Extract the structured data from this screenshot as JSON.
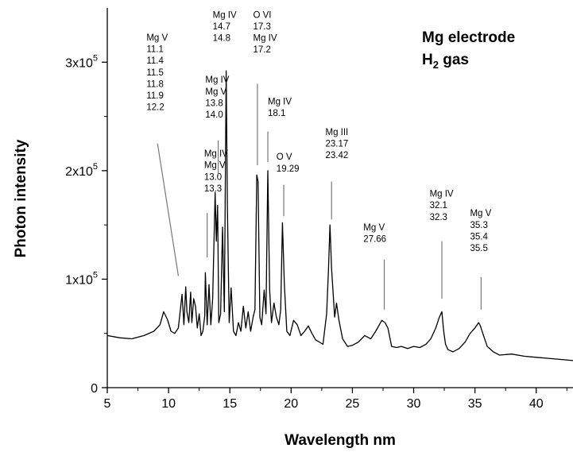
{
  "chart_data": {
    "type": "line",
    "xlabel": "Wavelength nm",
    "ylabel": "Photon intensity",
    "xlim": [
      5,
      43
    ],
    "ylim": [
      0,
      350000
    ],
    "x_ticks": [
      5,
      10,
      15,
      20,
      25,
      30,
      35,
      40
    ],
    "x_tick_labels": [
      "5",
      "10",
      "15",
      "20",
      "25",
      "30",
      "35",
      "40"
    ],
    "y_ticks": [
      0,
      100000,
      200000,
      300000
    ],
    "y_tick_labels": [
      {
        "base": "0",
        "exp": ""
      },
      {
        "base": "1x10",
        "exp": "5"
      },
      {
        "base": "2x10",
        "exp": "5"
      },
      {
        "base": "3x10",
        "exp": "5"
      }
    ],
    "inset_title": {
      "line1": "Mg electrode",
      "line2_base": "H",
      "line2_sub": "2",
      "line2_rest": " gas"
    },
    "series": [
      {
        "x": [
          5.0,
          6.0,
          7.0,
          8.0,
          8.8,
          9.3,
          9.6,
          9.9,
          10.2,
          10.5,
          10.8,
          11.1,
          11.25,
          11.4,
          11.5,
          11.65,
          11.8,
          11.9,
          12.05,
          12.2,
          12.35,
          12.5,
          12.65,
          12.8,
          12.95,
          13.0,
          13.15,
          13.3,
          13.45,
          13.6,
          13.8,
          13.9,
          14.0,
          14.1,
          14.25,
          14.4,
          14.55,
          14.7,
          14.8,
          14.95,
          15.1,
          15.3,
          15.5,
          15.7,
          15.9,
          16.1,
          16.3,
          16.5,
          16.7,
          16.9,
          17.05,
          17.2,
          17.3,
          17.45,
          17.6,
          17.8,
          17.95,
          18.1,
          18.25,
          18.4,
          18.6,
          18.8,
          19.0,
          19.15,
          19.29,
          19.45,
          19.65,
          19.9,
          20.2,
          20.5,
          20.8,
          21.1,
          21.4,
          21.7,
          22.0,
          22.3,
          22.6,
          22.9,
          23.05,
          23.17,
          23.3,
          23.42,
          23.55,
          23.7,
          23.9,
          24.2,
          24.6,
          25.0,
          25.5,
          26.0,
          26.5,
          26.9,
          27.2,
          27.4,
          27.66,
          27.9,
          28.2,
          28.6,
          29.0,
          29.5,
          30.0,
          30.5,
          31.0,
          31.4,
          31.8,
          32.1,
          32.3,
          32.45,
          32.6,
          32.8,
          33.2,
          33.7,
          34.2,
          34.6,
          35.0,
          35.3,
          35.4,
          35.5,
          35.7,
          36.0,
          36.5,
          37.0,
          38.0,
          39.0,
          40.0,
          41.0,
          42.0,
          43.0
        ],
        "y": [
          48000,
          46000,
          45000,
          48000,
          52000,
          58000,
          70000,
          63000,
          52000,
          50000,
          55000,
          86000,
          58000,
          93000,
          70000,
          60000,
          88000,
          60000,
          82000,
          75000,
          55000,
          68000,
          48000,
          52000,
          66000,
          106000,
          58000,
          95000,
          58000,
          82000,
          180000,
          135000,
          168000,
          60000,
          68000,
          148000,
          70000,
          292000,
          168000,
          60000,
          92000,
          52000,
          48000,
          60000,
          52000,
          75000,
          55000,
          70000,
          52000,
          65000,
          72000,
          196000,
          190000,
          65000,
          58000,
          90000,
          68000,
          200000,
          90000,
          60000,
          78000,
          65000,
          58000,
          72000,
          152000,
          95000,
          52000,
          48000,
          62000,
          58000,
          48000,
          52000,
          57000,
          50000,
          44000,
          42000,
          40000,
          68000,
          110000,
          150000,
          110000,
          88000,
          65000,
          78000,
          62000,
          45000,
          38000,
          39000,
          42000,
          48000,
          45000,
          52000,
          58000,
          62000,
          60000,
          55000,
          38000,
          37000,
          38000,
          36000,
          38000,
          37000,
          40000,
          45000,
          55000,
          65000,
          70000,
          52000,
          40000,
          35000,
          33000,
          36000,
          42000,
          50000,
          55000,
          60000,
          58000,
          55000,
          48000,
          38000,
          33000,
          30000,
          31000,
          29000,
          28000,
          27000,
          26000,
          25000
        ]
      }
    ],
    "annotations": [
      {
        "lines": [
          "Mg V",
          "11.1",
          "11.4",
          "11.5",
          "11.8",
          "11.9",
          "12.2"
        ],
        "x": 8.2,
        "y": 320000,
        "pointer": [
          [
            9.1,
            225000
          ],
          [
            10.8,
            103000
          ]
        ]
      },
      {
        "lines": [
          "Mg IV",
          "Mg V",
          "13.0",
          "13.3"
        ],
        "x": 12.9,
        "y": 213000,
        "pointer": [
          [
            13.15,
            161000
          ],
          [
            13.15,
            120000
          ]
        ]
      },
      {
        "lines": [
          "Mg IV",
          "Mg V",
          "13.8",
          "14.0"
        ],
        "x": 13.0,
        "y": 281000,
        "pointer": [
          [
            14.05,
            228000
          ],
          [
            14.05,
            195000
          ]
        ]
      },
      {
        "lines": [
          "Mg IV",
          "14.7",
          "14.8"
        ],
        "x": 13.6,
        "y": 341000,
        "pointer": null
      },
      {
        "lines": [
          "O VI",
          "17.3",
          "Mg IV",
          "17.2"
        ],
        "x": 16.9,
        "y": 341000,
        "pointer": [
          [
            17.25,
            280000
          ],
          [
            17.25,
            205000
          ]
        ]
      },
      {
        "lines": [
          "Mg IV",
          "18.1"
        ],
        "x": 18.1,
        "y": 261000,
        "pointer": [
          [
            18.1,
            236000
          ],
          [
            18.1,
            208000
          ]
        ]
      },
      {
        "lines": [
          "O V",
          "19.29"
        ],
        "x": 18.8,
        "y": 210000,
        "pointer": [
          [
            19.4,
            187000
          ],
          [
            19.4,
            158000
          ]
        ]
      },
      {
        "lines": [
          "Mg III",
          "23.17",
          "23.42"
        ],
        "x": 22.8,
        "y": 233000,
        "pointer": [
          [
            23.3,
            190000
          ],
          [
            23.3,
            155000
          ]
        ]
      },
      {
        "lines": [
          "Mg V",
          "27.66"
        ],
        "x": 25.9,
        "y": 145000,
        "pointer": [
          [
            27.6,
            118000
          ],
          [
            27.6,
            72000
          ]
        ]
      },
      {
        "lines": [
          "Mg IV",
          "32.1",
          "32.3"
        ],
        "x": 31.3,
        "y": 176000,
        "pointer": [
          [
            32.3,
            135000
          ],
          [
            32.3,
            82000
          ]
        ]
      },
      {
        "lines": [
          "Mg V",
          "35.3",
          "35.4",
          "35.5"
        ],
        "x": 34.6,
        "y": 158000,
        "pointer": [
          [
            35.5,
            102000
          ],
          [
            35.5,
            72000
          ]
        ]
      }
    ]
  }
}
